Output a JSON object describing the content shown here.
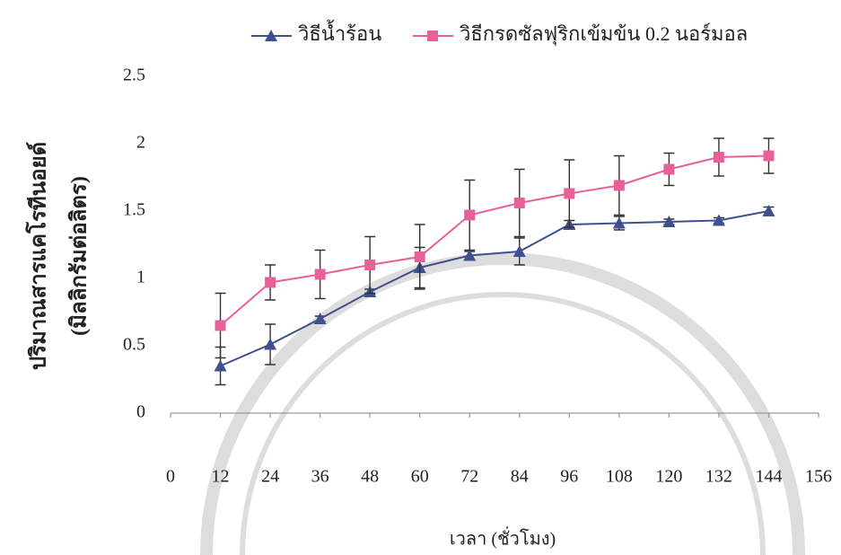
{
  "chart_data": {
    "type": "line",
    "x_label": "เวลา (ชั่วโมง)",
    "y_label": [
      "ปริมาณสารแคโรทีนอยด์",
      "(มิลลิกรัมต่อลิตร)"
    ],
    "x": [
      12,
      24,
      36,
      48,
      60,
      72,
      84,
      96,
      108,
      120,
      132,
      144
    ],
    "series": [
      {
        "name": "วิธีน้ำร้อน",
        "color": "#3f4f8f",
        "marker": "triangle",
        "values": [
          0.35,
          0.51,
          0.7,
          0.9,
          1.08,
          1.17,
          1.2,
          1.4,
          1.41,
          1.42,
          1.43,
          1.5
        ],
        "errors": [
          0.14,
          0.15,
          0.02,
          0.02,
          0.15,
          0.03,
          0.1,
          0.03,
          0.05,
          0.02,
          0.02,
          0.03
        ]
      },
      {
        "name": "วิธีกรดซัลฟุริกเข้มข้น 0.2 นอร์มอล",
        "color": "#e8609a",
        "marker": "square",
        "values": [
          0.65,
          0.97,
          1.03,
          1.1,
          1.16,
          1.47,
          1.56,
          1.63,
          1.69,
          1.81,
          1.9,
          1.91
        ],
        "errors": [
          0.24,
          0.13,
          0.18,
          0.21,
          0.24,
          0.26,
          0.25,
          0.25,
          0.22,
          0.12,
          0.14,
          0.13
        ]
      }
    ],
    "xlim": [
      0,
      156
    ],
    "xticks": [
      0,
      12,
      24,
      36,
      48,
      60,
      72,
      84,
      96,
      108,
      120,
      132,
      144,
      156
    ],
    "ylim": [
      0,
      2.5
    ],
    "yticks": [
      0,
      0.5,
      1,
      1.5,
      2,
      2.5
    ],
    "grid": false,
    "legend": "top"
  }
}
